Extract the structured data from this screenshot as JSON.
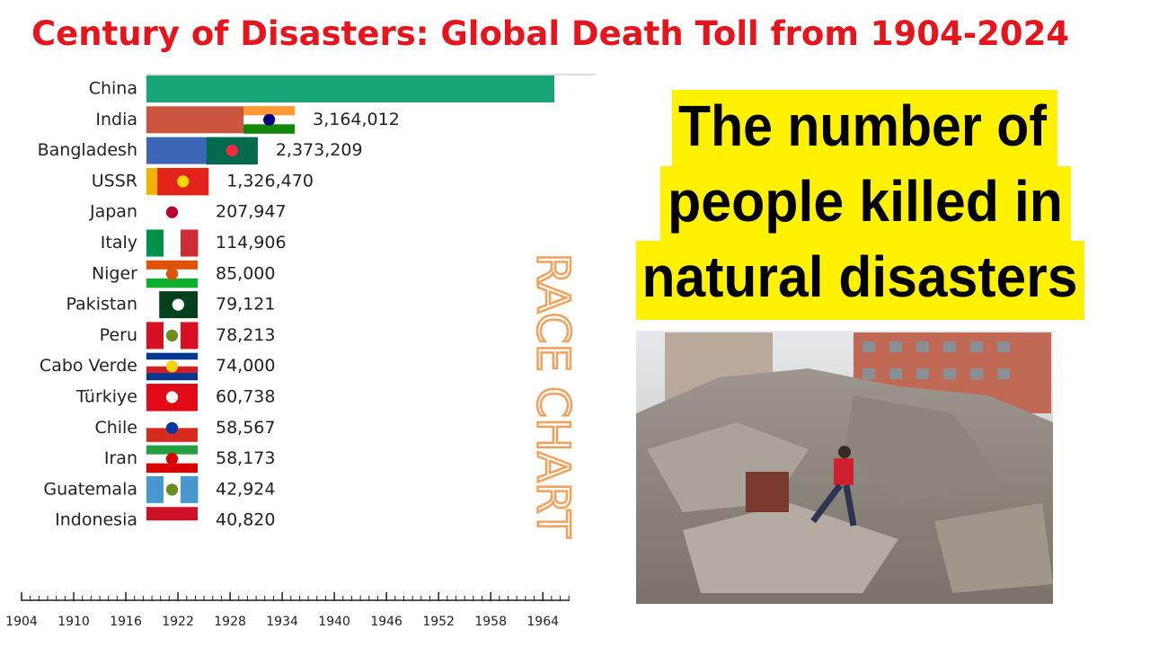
{
  "chart_data": {
    "type": "bar",
    "orientation": "horizontal",
    "title": "Century of Disasters: Global Death Toll from 1904-2024",
    "categories": [
      "China",
      "India",
      "Bangladesh",
      "USSR",
      "Japan",
      "Italy",
      "Niger",
      "Pakistan",
      "Peru",
      "Cabo Verde",
      "Türkiye",
      "Chile",
      "Iran",
      "Guatemala",
      "Indonesia"
    ],
    "values": [
      8700000,
      3164012,
      2373209,
      1326470,
      207947,
      114906,
      85000,
      79121,
      78213,
      74000,
      60738,
      58567,
      58173,
      42924,
      40820
    ],
    "value_labels": [
      null,
      "3,164,012",
      "2,373,209",
      "1,326,470",
      "207,947",
      "114,906",
      "85,000",
      "79,121",
      "78,213",
      "74,000",
      "60,738",
      "58,567",
      "58,173",
      "42,924",
      "40,820"
    ],
    "colors": [
      "#18a57a",
      "#cc5540",
      "#3b67b6",
      "#f0b400",
      "#d9399b",
      "#60b55a",
      "#f5a080",
      "#2a7a4a",
      "#d43030",
      "#2f4fa0",
      "#e52020",
      "#d42a2a",
      "#28a050",
      "#4a90d0",
      "#d42a2a"
    ],
    "time_axis": {
      "lim": [
        1904,
        1967
      ],
      "ticks": [
        1904,
        1910,
        1916,
        1922,
        1928,
        1934,
        1940,
        1946,
        1952,
        1958,
        1964
      ]
    }
  },
  "side_text": {
    "headline": [
      "The number of",
      "people killed in",
      "natural disasters"
    ],
    "watermark": "RACE CHART"
  }
}
